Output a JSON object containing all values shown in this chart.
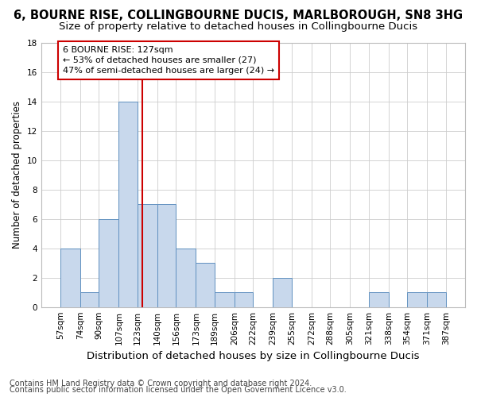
{
  "title": "6, BOURNE RISE, COLLINGBOURNE DUCIS, MARLBOROUGH, SN8 3HG",
  "subtitle": "Size of property relative to detached houses in Collingbourne Ducis",
  "xlabel": "Distribution of detached houses by size in Collingbourne Ducis",
  "ylabel": "Number of detached properties",
  "bin_edges": [
    57,
    74,
    90,
    107,
    123,
    140,
    156,
    173,
    189,
    206,
    222,
    239,
    255,
    272,
    288,
    305,
    321,
    338,
    354,
    371,
    387
  ],
  "bar_heights": [
    4,
    1,
    6,
    14,
    7,
    7,
    4,
    3,
    1,
    1,
    0,
    2,
    0,
    0,
    0,
    0,
    1,
    0,
    1,
    1
  ],
  "bar_color": "#c8d8ec",
  "bar_edgecolor": "#6090c0",
  "grid_color": "#cccccc",
  "background_color": "#ffffff",
  "vline_x": 127,
  "vline_color": "#cc0000",
  "annotation_line1": "6 BOURNE RISE: 127sqm",
  "annotation_line2": "← 53% of detached houses are smaller (27)",
  "annotation_line3": "47% of semi-detached houses are larger (24) →",
  "annotation_box_color": "#cc0000",
  "ylim": [
    0,
    18
  ],
  "yticks": [
    0,
    2,
    4,
    6,
    8,
    10,
    12,
    14,
    16,
    18
  ],
  "footnote1": "Contains HM Land Registry data © Crown copyright and database right 2024.",
  "footnote2": "Contains public sector information licensed under the Open Government Licence v3.0.",
  "title_fontsize": 10.5,
  "subtitle_fontsize": 9.5,
  "xlabel_fontsize": 9.5,
  "ylabel_fontsize": 8.5,
  "tick_fontsize": 7.5,
  "annotation_fontsize": 8,
  "footnote_fontsize": 7
}
